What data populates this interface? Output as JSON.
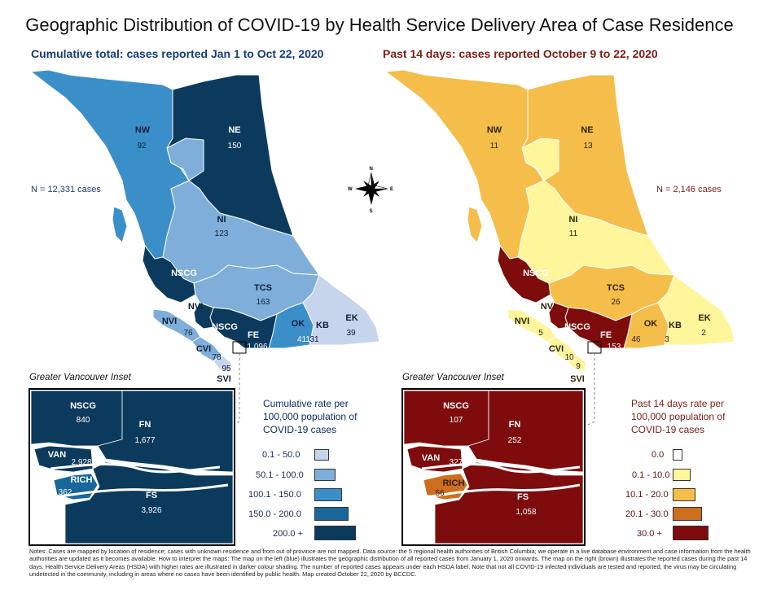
{
  "title": "Geographic Distribution of COVID-19 by Health Service Delivery Area of Case Residence",
  "left_map": {
    "subtitle": "Cumulative total: cases reported Jan 1 to Oct 22, 2020",
    "n_total": "N = 12,331 cases",
    "inset_title": "Greater Vancouver Inset",
    "regions": [
      {
        "code": "NW",
        "value": "92"
      },
      {
        "code": "NE",
        "value": "150"
      },
      {
        "code": "NI",
        "value": "123"
      },
      {
        "code": "NSCG",
        "value": ""
      },
      {
        "code": "TCS",
        "value": "163"
      },
      {
        "code": "NVI",
        "value": ""
      },
      {
        "code": "NVI",
        "value": "76"
      },
      {
        "code": "NSCG",
        "value": ""
      },
      {
        "code": "FE",
        "value": "1,096"
      },
      {
        "code": "OK",
        "value": "411"
      },
      {
        "code": "KB",
        "value": "31"
      },
      {
        "code": "EK",
        "value": "39"
      },
      {
        "code": "CVI",
        "value": "78"
      },
      {
        "code": "",
        "value": "95"
      },
      {
        "code": "SVI",
        "value": ""
      }
    ],
    "inset_regions": [
      {
        "code": "NSCG",
        "value": "840"
      },
      {
        "code": "FN",
        "value": "1,677"
      },
      {
        "code": "VAN",
        "value": "2,928"
      },
      {
        "code": "RICH",
        "value": "362"
      },
      {
        "code": "FS",
        "value": "3,926"
      }
    ],
    "legend_title": "Cumulative rate per 100,000 population of COVID-19 cases",
    "legend": [
      {
        "label": "0.1 - 50.0",
        "color": "#c6d5ec"
      },
      {
        "label": "50.1 - 100.0",
        "color": "#7eaed9"
      },
      {
        "label": "100.1 - 150.0",
        "color": "#3b8fc9"
      },
      {
        "label": "150.0 - 200.0",
        "color": "#19679a"
      },
      {
        "label": "200.0 +",
        "color": "#0b3a5c"
      }
    ]
  },
  "right_map": {
    "subtitle": "Past 14 days: cases reported October 9 to 22, 2020",
    "n_total": "N = 2,146 cases",
    "inset_title": "Greater Vancouver Inset",
    "regions": [
      {
        "code": "NW",
        "value": "11"
      },
      {
        "code": "NE",
        "value": "13"
      },
      {
        "code": "NI",
        "value": "11"
      },
      {
        "code": "NSCG",
        "value": ""
      },
      {
        "code": "TCS",
        "value": "26"
      },
      {
        "code": "NVI",
        "value": ""
      },
      {
        "code": "NVI",
        "value": "5"
      },
      {
        "code": "NSCG",
        "value": ""
      },
      {
        "code": "FE",
        "value": "153"
      },
      {
        "code": "OK",
        "value": "46"
      },
      {
        "code": "KB",
        "value": "3"
      },
      {
        "code": "EK",
        "value": "2"
      },
      {
        "code": "CVI",
        "value": "10"
      },
      {
        "code": "",
        "value": "9"
      },
      {
        "code": "SVI",
        "value": ""
      }
    ],
    "inset_regions": [
      {
        "code": "NSCG",
        "value": "107"
      },
      {
        "code": "FN",
        "value": "252"
      },
      {
        "code": "VAN",
        "value": "327"
      },
      {
        "code": "RICH",
        "value": "56"
      },
      {
        "code": "FS",
        "value": "1,058"
      }
    ],
    "legend_title": "Past 14 days rate per 100,000 population of COVID-19 cases",
    "legend": [
      {
        "label": "0.0",
        "color": "#ffffff"
      },
      {
        "label": "0.1 - 10.0",
        "color": "#fff59a"
      },
      {
        "label": "10.1 - 20.0",
        "color": "#f5be4a"
      },
      {
        "label": "20.1 - 30.0",
        "color": "#cc6f1f"
      },
      {
        "label": "30.0 +",
        "color": "#7e0c0c"
      }
    ]
  },
  "compass": {
    "n": "N",
    "s": "S",
    "e": "E",
    "w": "W"
  },
  "notes": "Notes: Cases are mapped by location of residence; cases with unknown residence and from out of province are not mapped. Data source: the 5 regional health authorities of British Columbia; we operate in a live database environment and case information from the health authorities are updated as it becomes available. How to interpret the maps: The map on the left (blue) illustrates the geographic distribution of all reported cases from January 1, 2020 onwards. The map on the right (brown) illustrates the reported cases during the past 14 days. Health Service Delivery Areas (HSDA) with higher rates are illustrated in darker colour shading. The number of reported cases appears under each HSDA label. Note that not all COVID-19 infected individuals are tested and reported; the virus may be circulating undetected in the community, including in areas where no cases have been identified by public health. Map created October 22, 2020 by BCCDC."
}
